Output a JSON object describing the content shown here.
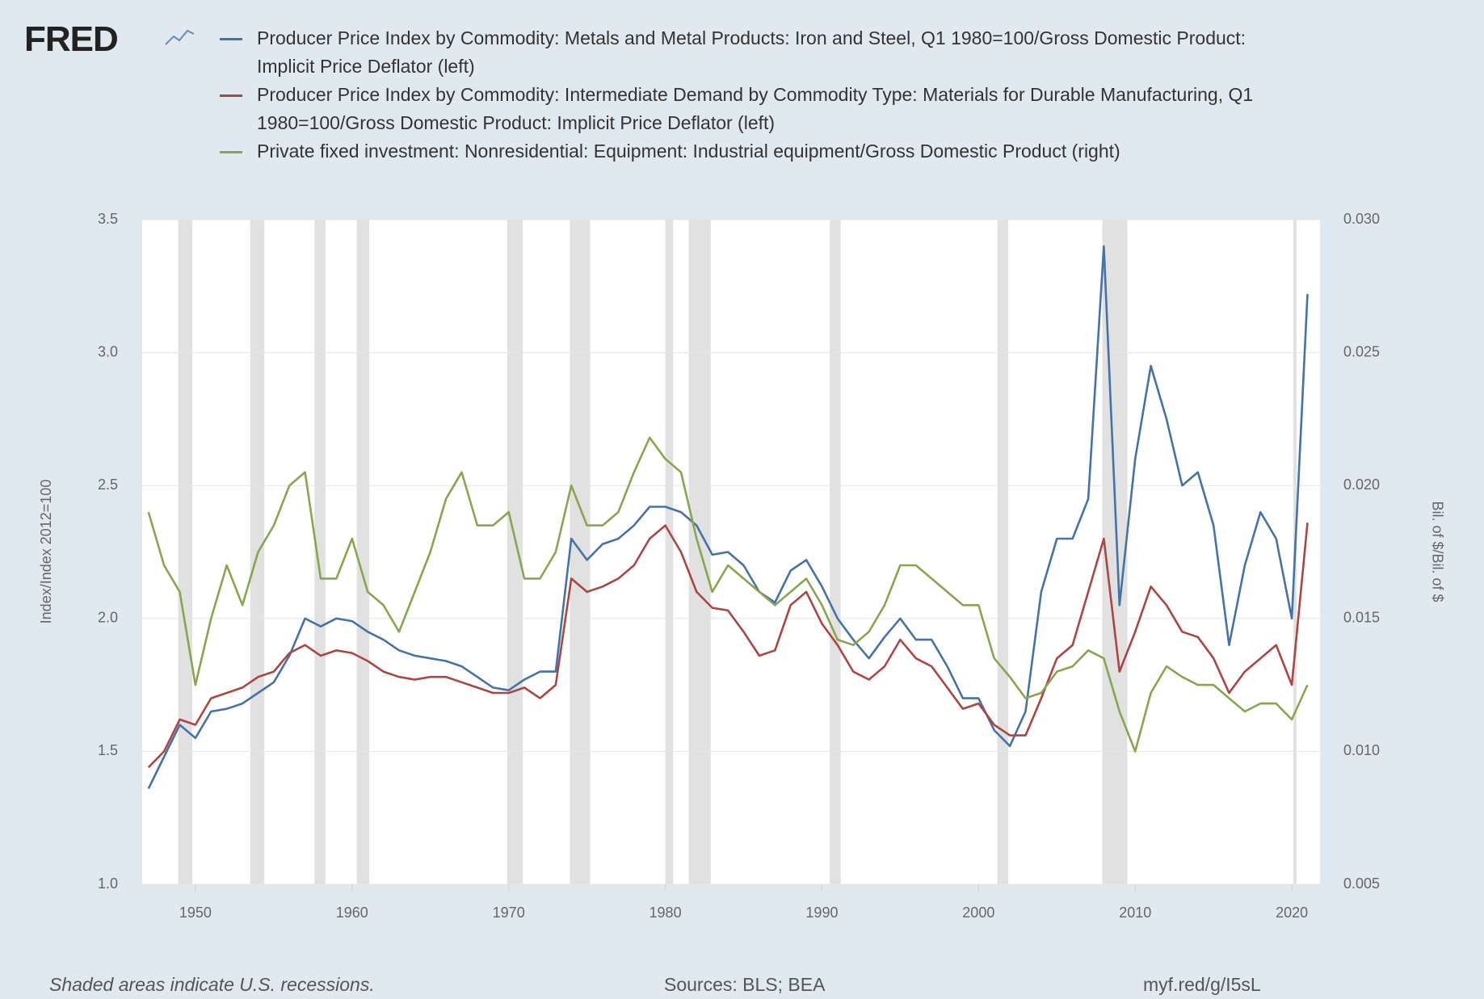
{
  "chart_data": {
    "type": "line",
    "logo": "FRED",
    "y_label": "Index/Index 2012=100",
    "y2_label": "Bil. of $/Bil. of $",
    "footer_left": "Shaded areas indicate U.S. recessions.",
    "footer_center": "Sources: BLS; BEA",
    "footer_right": "myf.red/g/I5sL",
    "xlim": [
      1946.6,
      2021.8
    ],
    "xticks": [
      1950,
      1960,
      1970,
      1980,
      1990,
      2000,
      2010,
      2020
    ],
    "ylim": [
      1.0,
      3.5
    ],
    "yticks": [
      {
        "value": 1.0,
        "label": "1.0"
      },
      1.5,
      {
        "value": 2.0,
        "label": "2.0"
      },
      2.5,
      {
        "value": 3.0,
        "label": "3.0"
      },
      3.5
    ],
    "y2lim": [
      0.005,
      0.03
    ],
    "y2ticks": [
      0.005,
      {
        "value": 0.01,
        "label": "0.010"
      },
      0.015,
      {
        "value": 0.02,
        "label": "0.020"
      },
      0.025,
      {
        "value": 0.03,
        "label": "0.030"
      }
    ],
    "grid": true,
    "recession_color": "#e1e1e1",
    "recessions": [
      [
        1948.9,
        1949.8
      ],
      [
        1953.5,
        1954.4
      ],
      [
        1957.6,
        1958.3
      ],
      [
        1960.3,
        1961.1
      ],
      [
        1969.9,
        1970.9
      ],
      [
        1973.9,
        1975.2
      ],
      [
        1980.0,
        1980.5
      ],
      [
        1981.5,
        1982.9
      ],
      [
        1990.5,
        1991.2
      ],
      [
        2001.2,
        2001.9
      ],
      [
        2007.9,
        2009.5
      ],
      [
        2020.1,
        2020.3
      ]
    ],
    "x": [
      1947,
      1948,
      1949,
      1950,
      1951,
      1952,
      1953,
      1954,
      1955,
      1956,
      1957,
      1958,
      1959,
      1960,
      1961,
      1962,
      1963,
      1964,
      1965,
      1966,
      1967,
      1968,
      1969,
      1970,
      1971,
      1972,
      1973,
      1974,
      1975,
      1976,
      1977,
      1978,
      1979,
      1980,
      1981,
      1982,
      1983,
      1984,
      1985,
      1986,
      1987,
      1988,
      1989,
      1990,
      1991,
      1992,
      1993,
      1994,
      1995,
      1996,
      1997,
      1998,
      1999,
      2000,
      2001,
      2002,
      2003,
      2004,
      2005,
      2006,
      2007,
      2008,
      2009,
      2010,
      2011,
      2012,
      2013,
      2014,
      2015,
      2016,
      2017,
      2018,
      2019,
      2020,
      2021
    ],
    "series": [
      {
        "name": "Producer Price Index by Commodity: Metals and Metal Products: Iron and Steel, Q1 1980=100/Gross Domestic Product: Implicit Price Deflator (left)",
        "color": "#4572a7",
        "axis": "y",
        "values": [
          1.36,
          1.48,
          1.6,
          1.55,
          1.65,
          1.66,
          1.68,
          1.72,
          1.76,
          1.86,
          2.0,
          1.97,
          2.0,
          1.99,
          1.95,
          1.92,
          1.88,
          1.86,
          1.85,
          1.84,
          1.82,
          1.78,
          1.74,
          1.73,
          1.77,
          1.8,
          1.8,
          2.3,
          2.22,
          2.28,
          2.3,
          2.35,
          2.42,
          2.42,
          2.4,
          2.35,
          2.24,
          2.25,
          2.2,
          2.1,
          2.06,
          2.18,
          2.22,
          2.12,
          2.0,
          1.92,
          1.85,
          1.93,
          2.0,
          1.92,
          1.92,
          1.82,
          1.7,
          1.7,
          1.58,
          1.52,
          1.65,
          2.1,
          2.3,
          2.3,
          2.45,
          3.4,
          2.05,
          2.6,
          2.95,
          2.75,
          2.5,
          2.55,
          2.35,
          1.9,
          2.2,
          2.4,
          2.3,
          2.0,
          3.22
        ]
      },
      {
        "name": "Producer Price Index by Commodity: Intermediate Demand by Commodity Type: Materials for Durable Manufacturing, Q1 1980=100/Gross Domestic Product: Implicit Price Deflator (left)",
        "color": "#aa4643",
        "axis": "y",
        "values": [
          1.44,
          1.5,
          1.62,
          1.6,
          1.7,
          1.72,
          1.74,
          1.78,
          1.8,
          1.87,
          1.9,
          1.86,
          1.88,
          1.87,
          1.84,
          1.8,
          1.78,
          1.77,
          1.78,
          1.78,
          1.76,
          1.74,
          1.72,
          1.72,
          1.74,
          1.7,
          1.75,
          2.15,
          2.1,
          2.12,
          2.15,
          2.2,
          2.3,
          2.35,
          2.25,
          2.1,
          2.04,
          2.03,
          1.95,
          1.86,
          1.88,
          2.05,
          2.1,
          1.98,
          1.9,
          1.8,
          1.77,
          1.82,
          1.92,
          1.85,
          1.82,
          1.74,
          1.66,
          1.68,
          1.6,
          1.56,
          1.56,
          1.7,
          1.85,
          1.9,
          2.1,
          2.3,
          1.8,
          1.95,
          2.12,
          2.05,
          1.95,
          1.93,
          1.85,
          1.72,
          1.8,
          1.85,
          1.9,
          1.75,
          2.36
        ]
      },
      {
        "name": "Private fixed investment: Nonresidential: Equipment: Industrial equipment/Gross Domestic Product (right)",
        "color": "#89a54e",
        "axis": "y2",
        "values": [
          0.019,
          0.017,
          0.016,
          0.0125,
          0.015,
          0.017,
          0.0155,
          0.0175,
          0.0185,
          0.02,
          0.0205,
          0.0165,
          0.0165,
          0.018,
          0.016,
          0.0155,
          0.0145,
          0.016,
          0.0175,
          0.0195,
          0.0205,
          0.0185,
          0.0185,
          0.019,
          0.0165,
          0.0165,
          0.0175,
          0.02,
          0.0185,
          0.0185,
          0.019,
          0.0205,
          0.0218,
          0.021,
          0.0205,
          0.018,
          0.016,
          0.017,
          0.0165,
          0.016,
          0.0155,
          0.016,
          0.0165,
          0.0155,
          0.0142,
          0.014,
          0.0145,
          0.0155,
          0.017,
          0.017,
          0.0165,
          0.016,
          0.0155,
          0.0155,
          0.0135,
          0.0128,
          0.012,
          0.0122,
          0.013,
          0.0132,
          0.0138,
          0.0135,
          0.0115,
          0.01,
          0.0122,
          0.0132,
          0.0128,
          0.0125,
          0.0125,
          0.012,
          0.0115,
          0.0118,
          0.0118,
          0.0112,
          0.0125
        ]
      }
    ]
  }
}
